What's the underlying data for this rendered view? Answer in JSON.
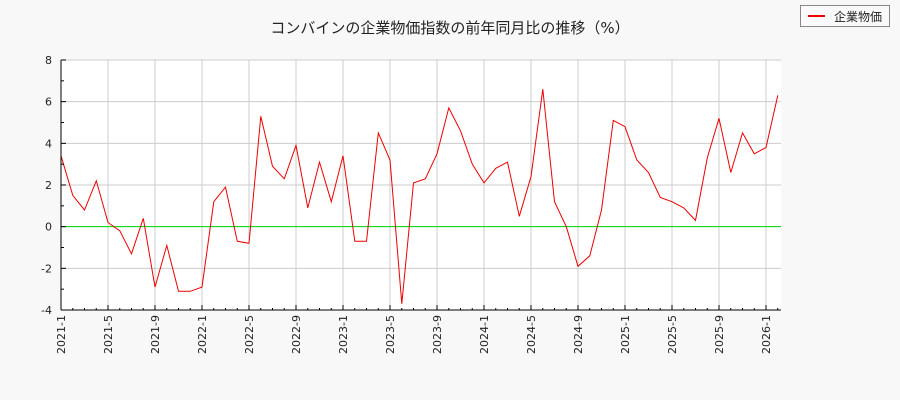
{
  "title": "コンバインの企業物価指数の前年同月比の推移（%）",
  "legend": {
    "label": "企業物価",
    "color": "#ee0000"
  },
  "colors": {
    "background": "#f8f8f8",
    "plot_background": "#ffffff",
    "grid": "#cccccc",
    "zero_line": "#00dd00",
    "series": "#ee0000",
    "axis": "#000000"
  },
  "chart_data": {
    "type": "line",
    "title": "コンバインの企業物価指数の前年同月比の推移（%）",
    "xlabel": "",
    "ylabel": "",
    "ylim": [
      -4,
      8
    ],
    "yticks": [
      -4,
      -2,
      0,
      2,
      4,
      6,
      8
    ],
    "xtick_labels": [
      "2021-1",
      "2021-5",
      "2021-9",
      "2022-1",
      "2022-5",
      "2022-9",
      "2023-1",
      "2023-5",
      "2023-9",
      "2024-1",
      "2024-5",
      "2024-9",
      "2025-1",
      "2025-5",
      "2025-9",
      "2026-1"
    ],
    "grid": true,
    "legend_position": "top-right",
    "x": [
      "2021-1",
      "2021-2",
      "2021-3",
      "2021-4",
      "2021-5",
      "2021-6",
      "2021-7",
      "2021-8",
      "2021-9",
      "2021-10",
      "2021-11",
      "2021-12",
      "2022-1",
      "2022-2",
      "2022-3",
      "2022-4",
      "2022-5",
      "2022-6",
      "2022-7",
      "2022-8",
      "2022-9",
      "2022-10",
      "2022-11",
      "2022-12",
      "2023-1",
      "2023-2",
      "2023-3",
      "2023-4",
      "2023-5",
      "2023-6",
      "2023-7",
      "2023-8",
      "2023-9",
      "2023-10",
      "2023-11",
      "2023-12",
      "2024-1",
      "2024-2",
      "2024-3",
      "2024-4",
      "2024-5",
      "2024-6",
      "2024-7",
      "2024-8",
      "2024-9",
      "2024-10",
      "2024-11",
      "2024-12",
      "2025-1",
      "2025-2",
      "2025-3",
      "2025-4",
      "2025-5",
      "2025-6",
      "2025-7",
      "2025-8",
      "2025-9",
      "2025-10",
      "2025-11",
      "2025-12",
      "2026-1",
      "2026-2"
    ],
    "series": [
      {
        "name": "企業物価",
        "color": "#ee0000",
        "values": [
          3.4,
          1.5,
          0.8,
          2.2,
          0.2,
          -0.2,
          -1.3,
          0.4,
          -2.9,
          -0.9,
          -3.1,
          -3.1,
          -2.9,
          1.2,
          1.9,
          -0.7,
          -0.8,
          5.3,
          2.9,
          2.3,
          3.9,
          0.9,
          3.1,
          1.2,
          3.4,
          -0.7,
          -0.7,
          4.5,
          3.2,
          -3.7,
          2.1,
          2.3,
          3.5,
          5.7,
          4.6,
          3.0,
          2.1,
          2.8,
          3.1,
          0.5,
          2.4,
          6.6,
          1.2,
          0.0,
          -1.9,
          -1.4,
          0.8,
          5.1,
          4.8,
          3.2,
          2.6,
          1.4,
          1.2,
          0.9,
          0.3,
          3.3,
          5.2,
          2.6,
          4.5,
          3.5,
          3.8,
          6.3
        ]
      }
    ],
    "reference_lines": [
      {
        "y": 0,
        "color": "#00dd00"
      }
    ]
  }
}
